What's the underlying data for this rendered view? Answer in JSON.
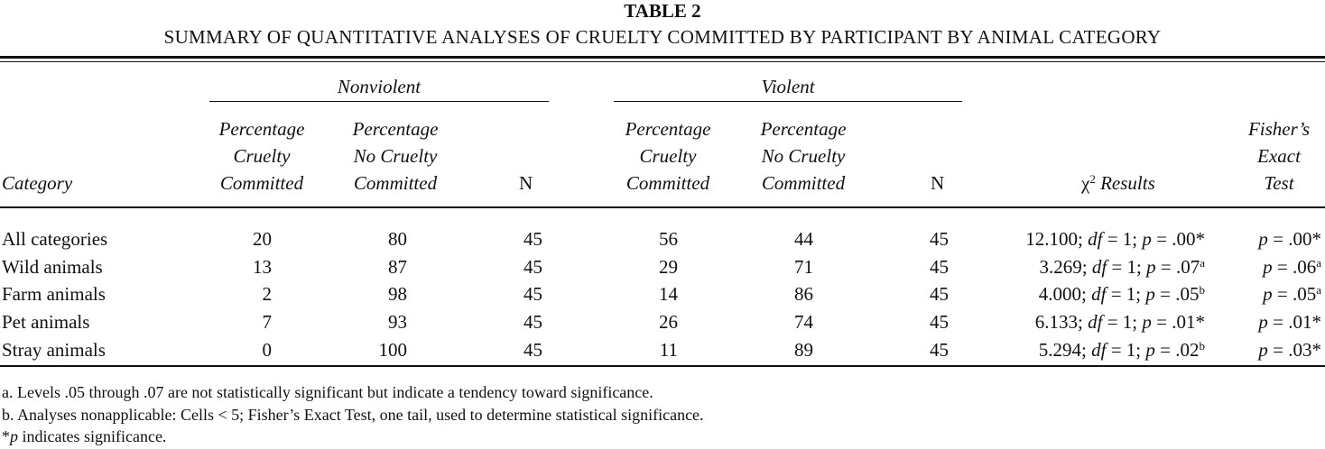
{
  "table_label": "TABLE 2",
  "table_title": "SUMMARY OF QUANTITATIVE ANALYSES OF CRUELTY COMMITTED BY PARTICIPANT BY ANIMAL CATEGORY",
  "groups": {
    "nonviolent": "Nonviolent",
    "violent": "Violent"
  },
  "headers": {
    "category": "Category",
    "pct_cruelty": [
      "Percentage",
      "Cruelty",
      "Committed"
    ],
    "pct_no_cruelty": [
      "Percentage",
      "No Cruelty",
      "Committed"
    ],
    "n": "N",
    "chi_symbol": "χ",
    "chi_sup": "2",
    "chi_label": " Results",
    "fisher": [
      "Fisher’s",
      "Exact",
      "Test"
    ]
  },
  "rows": [
    {
      "category": "All categories",
      "nv_cruelty": "20",
      "nv_no": "80",
      "nv_n": "45",
      "v_cruelty": "56",
      "v_no": "44",
      "v_n": "45",
      "chi_val": "12.100",
      "chi_p": ".00*",
      "chi_sup": "",
      "fisher_p": ".00*",
      "fisher_sup": ""
    },
    {
      "category": "Wild animals",
      "nv_cruelty": "13",
      "nv_no": "87",
      "nv_n": "45",
      "v_cruelty": "29",
      "v_no": "71",
      "v_n": "45",
      "chi_val": "3.269",
      "chi_p": ".07",
      "chi_sup": "a",
      "fisher_p": ".06",
      "fisher_sup": "a"
    },
    {
      "category": "Farm animals",
      "nv_cruelty": "2",
      "nv_no": "98",
      "nv_n": "45",
      "v_cruelty": "14",
      "v_no": "86",
      "v_n": "45",
      "chi_val": "4.000",
      "chi_p": ".05",
      "chi_sup": "b",
      "fisher_p": ".05",
      "fisher_sup": "a"
    },
    {
      "category": "Pet animals",
      "nv_cruelty": "7",
      "nv_no": "93",
      "nv_n": "45",
      "v_cruelty": "26",
      "v_no": "74",
      "v_n": "45",
      "chi_val": "6.133",
      "chi_p": ".01*",
      "chi_sup": "",
      "fisher_p": ".01*",
      "fisher_sup": ""
    },
    {
      "category": "Stray animals",
      "nv_cruelty": "0",
      "nv_no": "100",
      "nv_n": "45",
      "v_cruelty": "11",
      "v_no": "89",
      "v_n": "45",
      "chi_val": "5.294",
      "chi_p": ".02",
      "chi_sup": "b",
      "fisher_p": ".03*",
      "fisher_sup": ""
    }
  ],
  "stat_text": {
    "df": "df",
    "df_eq": " = 1; ",
    "p": "p",
    "p_eq": " = "
  },
  "notes": {
    "a": "a. Levels .05 through .07 are not statistically significant but indicate a tendency toward significance.",
    "b": "b. Analyses nonapplicable: Cells < 5; Fisher’s Exact Test, one tail, used to determine statistical significance.",
    "star_sym": "*",
    "star_p": "p",
    "star_text": " indicates significance."
  }
}
